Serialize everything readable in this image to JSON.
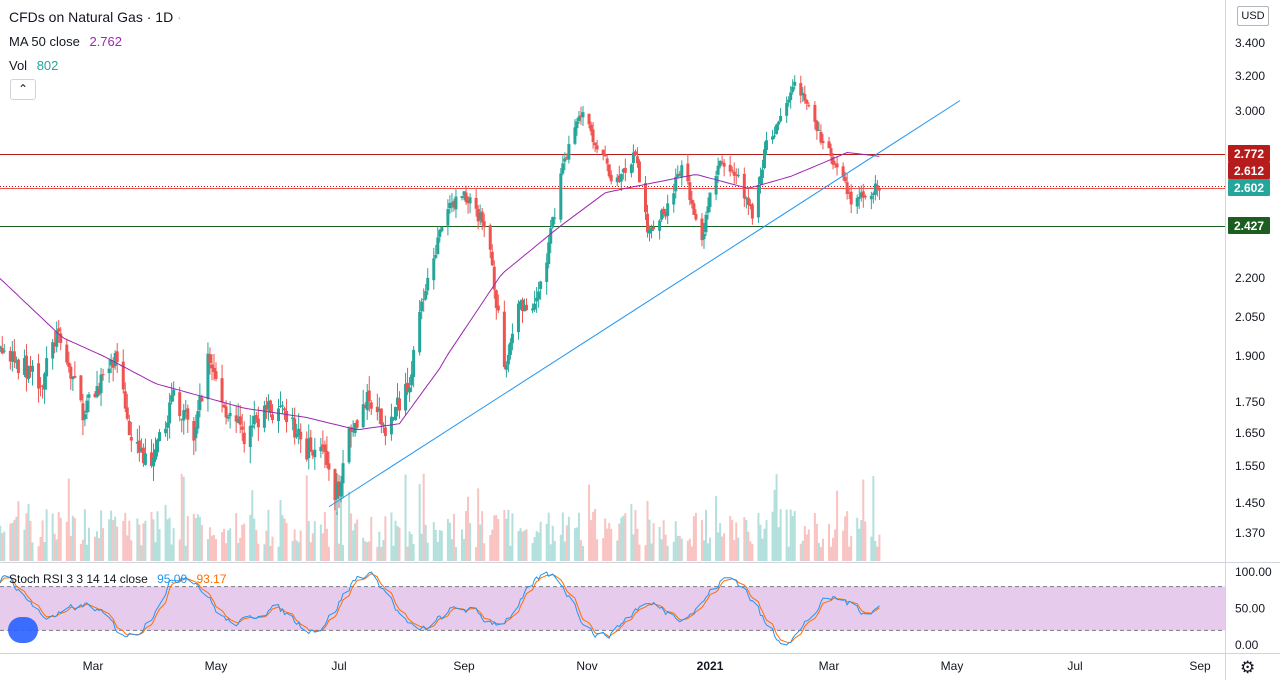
{
  "header": {
    "symbol": "CFDs on Natural Gas",
    "interval": "1D",
    "ma_label": "MA 50 close",
    "ma_value": "2.762",
    "vol_label": "Vol",
    "vol_value": "802",
    "collapse_icon": "chevron-up-icon",
    "currency": "USD"
  },
  "rsi": {
    "label": "Stoch RSI 3 3 14 14 close",
    "k_value": "95.00",
    "d_value": "93.17",
    "scale": [
      "100.00",
      "50.00",
      "0.00"
    ]
  },
  "colors": {
    "up": "#26a69a",
    "down": "#ef5350",
    "ma": "#9c27b0",
    "trend": "#2196f3",
    "resist": "#b71c1c",
    "support": "#1b5e20",
    "rsi_k": "#2196f3",
    "rsi_d": "#ff6d00",
    "rsi_band": "#e1bee7"
  },
  "chart_data": {
    "type": "candlestick",
    "y_ticks": [
      "3.400",
      "3.200",
      "3.000",
      "2.200",
      "2.050",
      "1.900",
      "1.750",
      "1.650",
      "1.550",
      "1.450",
      "1.370"
    ],
    "x_ticks": [
      "Mar",
      "May",
      "Jul",
      "Sep",
      "Nov",
      "2021",
      "Mar",
      "May",
      "Jul",
      "Sep"
    ],
    "price_labels": [
      {
        "text": "2.772",
        "value": 2.772,
        "color": "#b71c1c"
      },
      {
        "text": "2.612",
        "value": 2.612,
        "color": "#b71c1c"
      },
      {
        "text": "2.602",
        "value": 2.602,
        "color": "#26a69a"
      },
      {
        "text": "2.427",
        "value": 2.427,
        "color": "#1b5e20"
      }
    ],
    "h_lines": [
      {
        "value": 2.772,
        "color": "#b71c1c",
        "style": "solid"
      },
      {
        "value": 2.612,
        "color": "#b71c1c",
        "style": "dotted"
      },
      {
        "value": 2.602,
        "color": "#ef5350",
        "style": "solid"
      },
      {
        "value": 2.427,
        "color": "#1b5e20",
        "style": "solid"
      }
    ],
    "trend_line": {
      "from": {
        "date": "2020-06-26",
        "value": 1.44
      },
      "to": {
        "date": "2021-05-05",
        "value": 3.06
      }
    },
    "ohlc_anchors": [
      [
        "2020-01-01",
        2.18
      ],
      [
        "2020-01-10",
        1.95
      ],
      [
        "2020-01-22",
        1.88
      ],
      [
        "2020-02-05",
        1.82
      ],
      [
        "2020-02-12",
        1.98
      ],
      [
        "2020-02-25",
        1.72
      ],
      [
        "2020-03-05",
        1.82
      ],
      [
        "2020-03-12",
        1.88
      ],
      [
        "2020-03-20",
        1.65
      ],
      [
        "2020-03-30",
        1.53
      ],
      [
        "2020-04-10",
        1.78
      ],
      [
        "2020-04-20",
        1.63
      ],
      [
        "2020-04-27",
        1.9
      ],
      [
        "2020-05-05",
        1.74
      ],
      [
        "2020-05-15",
        1.63
      ],
      [
        "2020-05-25",
        1.73
      ],
      [
        "2020-06-05",
        1.7
      ],
      [
        "2020-06-15",
        1.6
      ],
      [
        "2020-06-22",
        1.63
      ],
      [
        "2020-06-29",
        1.44
      ],
      [
        "2020-07-06",
        1.66
      ],
      [
        "2020-07-15",
        1.75
      ],
      [
        "2020-07-25",
        1.66
      ],
      [
        "2020-08-05",
        1.83
      ],
      [
        "2020-08-15",
        2.25
      ],
      [
        "2020-08-25",
        2.52
      ],
      [
        "2020-09-01",
        2.58
      ],
      [
        "2020-09-08",
        2.48
      ],
      [
        "2020-09-14",
        2.33
      ],
      [
        "2020-09-21",
        1.83
      ],
      [
        "2020-09-28",
        2.12
      ],
      [
        "2020-10-05",
        2.05
      ],
      [
        "2020-10-12",
        2.28
      ],
      [
        "2020-10-20",
        2.72
      ],
      [
        "2020-10-30",
        3.02
      ],
      [
        "2020-11-05",
        2.84
      ],
      [
        "2020-11-15",
        2.62
      ],
      [
        "2020-11-25",
        2.76
      ],
      [
        "2020-12-01",
        2.42
      ],
      [
        "2020-12-10",
        2.5
      ],
      [
        "2020-12-18",
        2.7
      ],
      [
        "2020-12-28",
        2.38
      ],
      [
        "2021-01-05",
        2.72
      ],
      [
        "2021-01-15",
        2.66
      ],
      [
        "2021-01-22",
        2.47
      ],
      [
        "2021-01-29",
        2.82
      ],
      [
        "2021-02-05",
        2.96
      ],
      [
        "2021-02-12",
        3.2
      ],
      [
        "2021-02-18",
        3.04
      ],
      [
        "2021-02-26",
        2.82
      ],
      [
        "2021-03-05",
        2.72
      ],
      [
        "2021-03-12",
        2.52
      ],
      [
        "2021-03-19",
        2.58
      ],
      [
        "2021-03-26",
        2.6
      ]
    ],
    "ma50_anchors": [
      [
        "2020-01-01",
        2.3
      ],
      [
        "2020-02-15",
        1.97
      ],
      [
        "2020-04-01",
        1.81
      ],
      [
        "2020-05-15",
        1.73
      ],
      [
        "2020-06-15",
        1.7
      ],
      [
        "2020-07-10",
        1.66
      ],
      [
        "2020-07-31",
        1.68
      ],
      [
        "2020-08-20",
        1.86
      ],
      [
        "2020-09-20",
        2.22
      ],
      [
        "2020-10-15",
        2.4
      ],
      [
        "2020-11-10",
        2.58
      ],
      [
        "2020-12-10",
        2.64
      ],
      [
        "2020-12-25",
        2.67
      ],
      [
        "2021-01-20",
        2.6
      ],
      [
        "2021-02-10",
        2.66
      ],
      [
        "2021-03-01",
        2.74
      ],
      [
        "2021-03-10",
        2.78
      ],
      [
        "2021-03-26",
        2.76
      ]
    ],
    "series": [
      {
        "name": "MA 50 close",
        "last": 2.762
      },
      {
        "name": "Vol",
        "last": 802
      }
    ]
  }
}
